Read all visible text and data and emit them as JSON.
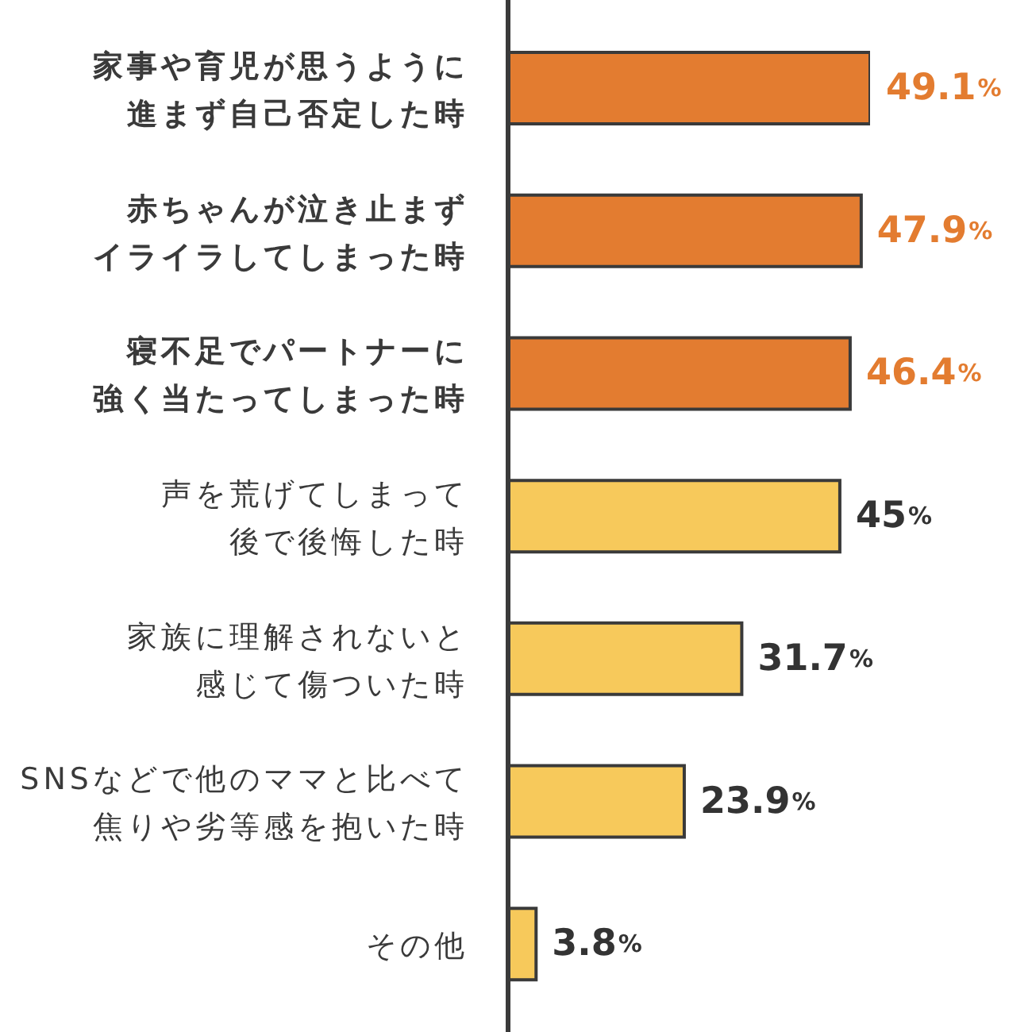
{
  "chart_data": {
    "type": "bar",
    "orientation": "horizontal",
    "categories": [
      "家事や育児が思うように進まず自己否定した時",
      "赤ちゃんが泣き止まずイライラしてしまった時",
      "寝不足でパートナーに強く当たってしまった時",
      "声を荒げてしまって後で後悔した時",
      "家族に理解されないと感じて傷ついた時",
      "SNSなどで他のママと比べて焦りや劣等感を抱いた時",
      "その他"
    ],
    "values": [
      49.1,
      47.9,
      46.4,
      45,
      31.7,
      23.9,
      3.8
    ],
    "colors": [
      "#e37c30",
      "#e37c30",
      "#e37c30",
      "#f7c95b",
      "#f7c95b",
      "#f7c95b",
      "#f7c95b"
    ],
    "value_labels": [
      "49.1%",
      "47.9%",
      "46.4%",
      "45%",
      "31.7%",
      "23.9%",
      "3.8%"
    ],
    "tick_labels": "y"
  }
}
